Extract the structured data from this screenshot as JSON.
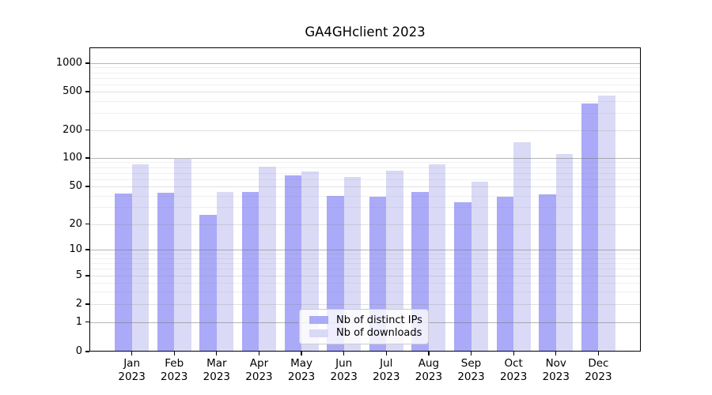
{
  "chart_data": {
    "type": "bar",
    "title": "GA4GHclient 2023",
    "categories": [
      {
        "month": "Jan",
        "year": "2023"
      },
      {
        "month": "Feb",
        "year": "2023"
      },
      {
        "month": "Mar",
        "year": "2023"
      },
      {
        "month": "Apr",
        "year": "2023"
      },
      {
        "month": "May",
        "year": "2023"
      },
      {
        "month": "Jun",
        "year": "2023"
      },
      {
        "month": "Jul",
        "year": "2023"
      },
      {
        "month": "Aug",
        "year": "2023"
      },
      {
        "month": "Sep",
        "year": "2023"
      },
      {
        "month": "Oct",
        "year": "2023"
      },
      {
        "month": "Nov",
        "year": "2023"
      },
      {
        "month": "Dec",
        "year": "2023"
      }
    ],
    "series": [
      {
        "name": "Nb of distinct IPs",
        "color": "#aaaaf8",
        "values": [
          42,
          43,
          25,
          44,
          65,
          40,
          39,
          44,
          34,
          39,
          41,
          380
        ]
      },
      {
        "name": "Nb of downloads",
        "color": "#dadaf6",
        "values": [
          86,
          98,
          44,
          81,
          72,
          63,
          73,
          86,
          56,
          148,
          110,
          455
        ]
      }
    ],
    "y_axis": {
      "scale": "symlog",
      "ticks": [
        0,
        1,
        2,
        5,
        10,
        20,
        50,
        100,
        200,
        500,
        1000
      ],
      "range": [
        0,
        1500
      ]
    },
    "x_axis": {
      "label": "",
      "tick_style": "two-line month over year"
    },
    "legend": {
      "position": "lower-center"
    },
    "grid": true,
    "colors": {
      "axis": "#000000",
      "grid_major": "rgba(110,110,110,0.50)",
      "grid_labeled_minor": "rgba(130,130,130,0.24)",
      "grid_minor": "rgba(130,130,130,0.12)",
      "background": "#ffffff"
    }
  }
}
